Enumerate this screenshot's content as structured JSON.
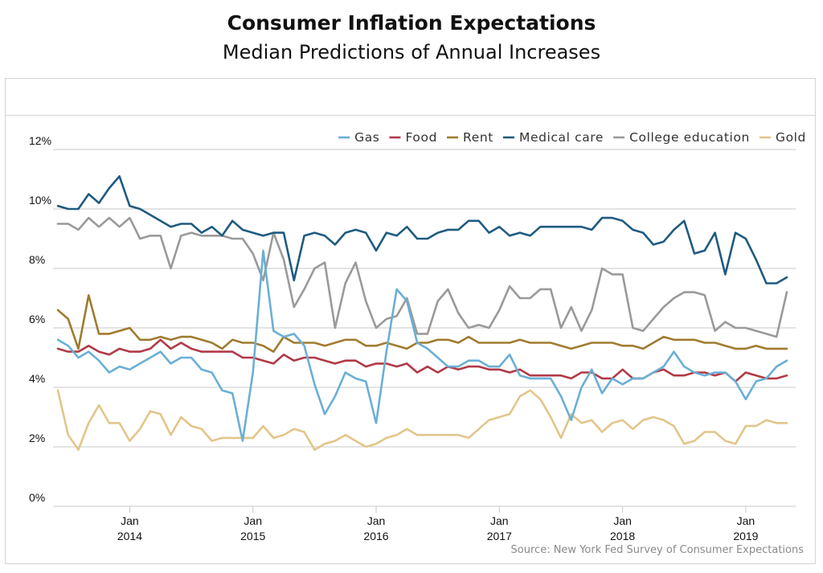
{
  "title": "Consumer Inflation Expectations",
  "subtitle": "Median Predictions of Annual Increases",
  "source": "Source: New York Fed Survey of Consumer Expectations",
  "chart_data": {
    "type": "line",
    "title": "Consumer Inflation Expectations",
    "subtitle": "Median Predictions of Annual Increases",
    "x_start": "2013-06",
    "x_end": "2019-03",
    "y_range": [
      0,
      12
    ],
    "y_ticks": [
      0,
      2,
      4,
      6,
      8,
      10,
      12
    ],
    "y_tick_labels": [
      "0%",
      "2%",
      "4%",
      "6%",
      "8%",
      "10%",
      "12%"
    ],
    "x_ticks": [
      {
        "date": "2014-01",
        "month": "Jan",
        "year": "2014"
      },
      {
        "date": "2015-01",
        "month": "Jan",
        "year": "2015"
      },
      {
        "date": "2016-01",
        "month": "Jan",
        "year": "2016"
      },
      {
        "date": "2017-01",
        "month": "Jan",
        "year": "2017"
      },
      {
        "date": "2018-01",
        "month": "Jan",
        "year": "2018"
      },
      {
        "date": "2019-01",
        "month": "Jan",
        "year": "2019"
      }
    ],
    "grid": "horizontal",
    "legend_position": "top-right",
    "series": [
      {
        "name": "Gas",
        "color": "#6aafd6",
        "values": [
          5.6,
          5.4,
          5.0,
          5.2,
          4.9,
          4.5,
          4.7,
          4.6,
          4.8,
          5.0,
          5.2,
          4.8,
          5.0,
          5.0,
          4.6,
          4.5,
          3.9,
          3.8,
          2.2,
          4.5,
          8.6,
          5.9,
          5.7,
          5.8,
          5.4,
          4.1,
          3.1,
          3.7,
          4.5,
          4.3,
          4.2,
          2.8,
          5.2,
          7.3,
          6.9,
          5.5,
          5.3,
          5.0,
          4.7,
          4.7,
          4.9,
          4.9,
          4.7,
          4.7,
          5.1,
          4.4,
          4.3,
          4.3,
          4.3,
          3.7,
          2.9,
          4.0,
          4.6,
          3.8,
          4.3,
          4.1,
          4.3,
          4.3,
          4.5,
          4.7,
          5.2,
          4.7,
          4.5,
          4.4,
          4.5,
          4.5,
          4.2,
          3.6,
          4.2,
          4.3,
          4.7,
          4.9
        ]
      },
      {
        "name": "Food",
        "color": "#b13a46",
        "values": [
          5.3,
          5.2,
          5.2,
          5.4,
          5.2,
          5.1,
          5.3,
          5.2,
          5.2,
          5.3,
          5.6,
          5.3,
          5.5,
          5.3,
          5.2,
          5.2,
          5.2,
          5.2,
          5.0,
          5.0,
          4.9,
          4.8,
          5.1,
          4.9,
          5.0,
          5.0,
          4.9,
          4.8,
          4.9,
          4.9,
          4.7,
          4.8,
          4.8,
          4.7,
          4.8,
          4.5,
          4.7,
          4.5,
          4.7,
          4.6,
          4.7,
          4.7,
          4.6,
          4.6,
          4.5,
          4.6,
          4.4,
          4.4,
          4.4,
          4.4,
          4.3,
          4.5,
          4.5,
          4.3,
          4.3,
          4.6,
          4.3,
          4.3,
          4.5,
          4.6,
          4.4,
          4.4,
          4.5,
          4.5,
          4.4,
          4.5,
          4.2,
          4.5,
          4.4,
          4.3,
          4.3,
          4.4
        ]
      },
      {
        "name": "Rent",
        "color": "#a07b2f",
        "values": [
          6.6,
          6.3,
          5.3,
          7.1,
          5.8,
          5.8,
          5.9,
          6.0,
          5.6,
          5.6,
          5.7,
          5.6,
          5.7,
          5.7,
          5.6,
          5.5,
          5.3,
          5.6,
          5.5,
          5.5,
          5.4,
          5.2,
          5.7,
          5.5,
          5.5,
          5.5,
          5.4,
          5.5,
          5.6,
          5.6,
          5.4,
          5.4,
          5.5,
          5.4,
          5.3,
          5.5,
          5.5,
          5.6,
          5.6,
          5.5,
          5.7,
          5.5,
          5.5,
          5.5,
          5.5,
          5.6,
          5.5,
          5.5,
          5.5,
          5.4,
          5.3,
          5.4,
          5.5,
          5.5,
          5.5,
          5.4,
          5.4,
          5.3,
          5.5,
          5.7,
          5.6,
          5.6,
          5.6,
          5.5,
          5.5,
          5.4,
          5.3,
          5.3,
          5.4,
          5.3,
          5.3,
          5.3
        ]
      },
      {
        "name": "Medical care",
        "color": "#1f5b80",
        "values": [
          10.1,
          10.0,
          10.0,
          10.5,
          10.2,
          10.7,
          11.1,
          10.1,
          10.0,
          9.8,
          9.6,
          9.4,
          9.5,
          9.5,
          9.2,
          9.4,
          9.1,
          9.6,
          9.3,
          9.2,
          9.1,
          9.2,
          9.2,
          7.6,
          9.1,
          9.2,
          9.1,
          8.8,
          9.2,
          9.3,
          9.2,
          8.6,
          9.2,
          9.1,
          9.4,
          9.0,
          9.0,
          9.2,
          9.3,
          9.3,
          9.6,
          9.6,
          9.2,
          9.4,
          9.1,
          9.2,
          9.1,
          9.4,
          9.4,
          9.4,
          9.4,
          9.4,
          9.3,
          9.7,
          9.7,
          9.6,
          9.3,
          9.2,
          8.8,
          8.9,
          9.3,
          9.6,
          8.5,
          8.6,
          9.2,
          7.8,
          9.2,
          9.0,
          8.3,
          7.5,
          7.5,
          7.7
        ]
      },
      {
        "name": "College education",
        "color": "#9a9a9a",
        "values": [
          9.5,
          9.5,
          9.3,
          9.7,
          9.4,
          9.7,
          9.4,
          9.7,
          9.0,
          9.1,
          9.1,
          8.0,
          9.1,
          9.2,
          9.1,
          9.1,
          9.1,
          9.0,
          9.0,
          8.5,
          7.6,
          9.2,
          8.3,
          6.7,
          7.3,
          8.0,
          8.2,
          6.0,
          7.5,
          8.2,
          6.9,
          6.0,
          6.3,
          6.4,
          7.0,
          5.8,
          5.8,
          6.9,
          7.3,
          6.5,
          6.0,
          6.1,
          6.0,
          6.6,
          7.4,
          7.0,
          7.0,
          7.3,
          7.3,
          6.0,
          6.7,
          5.9,
          6.6,
          8.0,
          7.8,
          7.8,
          6.0,
          5.9,
          6.3,
          6.7,
          7.0,
          7.2,
          7.2,
          7.1,
          5.9,
          6.2,
          6.0,
          6.0,
          5.9,
          5.8,
          5.7,
          7.2
        ]
      },
      {
        "name": "Gold",
        "color": "#e3c58a",
        "values": [
          3.9,
          2.4,
          1.9,
          2.8,
          3.4,
          2.8,
          2.8,
          2.2,
          2.6,
          3.2,
          3.1,
          2.4,
          3.0,
          2.7,
          2.6,
          2.2,
          2.3,
          2.3,
          2.3,
          2.3,
          2.7,
          2.3,
          2.4,
          2.6,
          2.5,
          1.9,
          2.1,
          2.2,
          2.4,
          2.2,
          2.0,
          2.1,
          2.3,
          2.4,
          2.6,
          2.4,
          2.4,
          2.4,
          2.4,
          2.4,
          2.3,
          2.6,
          2.9,
          3.0,
          3.1,
          3.7,
          3.9,
          3.6,
          3.0,
          2.3,
          3.1,
          2.8,
          2.9,
          2.5,
          2.8,
          2.9,
          2.6,
          2.9,
          3.0,
          2.9,
          2.7,
          2.1,
          2.2,
          2.5,
          2.5,
          2.2,
          2.1,
          2.7,
          2.7,
          2.9,
          2.8,
          2.8
        ]
      }
    ]
  }
}
